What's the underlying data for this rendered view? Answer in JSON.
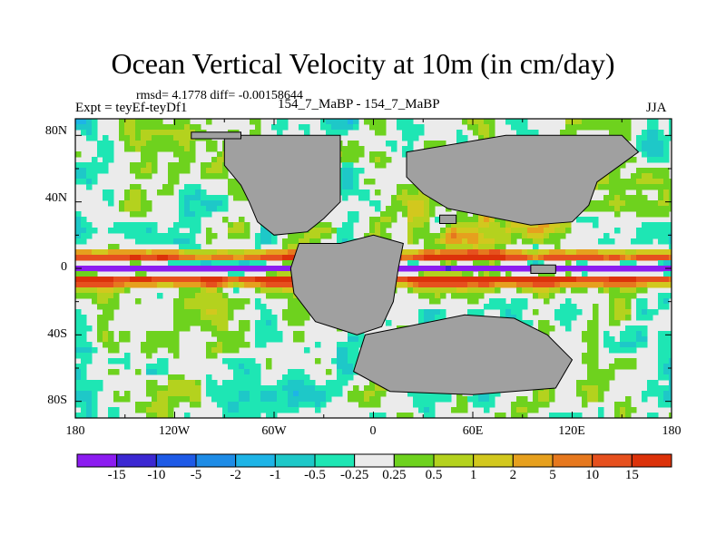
{
  "title": "Ocean Vertical Velocity at 10m (in cm/day)",
  "stats": "rmsd= 4.1778  diff= -0.00158644",
  "expt": "Expt = teyEf-teyDf1",
  "center_label": "154_7_MaBP - 154_7_MaBP",
  "season": "JJA",
  "lat_labels": [
    "80N",
    "40N",
    "0",
    "40S",
    "80S"
  ],
  "lon_labels": [
    "180",
    "120W",
    "60W",
    "0",
    "60E",
    "120E",
    "180"
  ],
  "colorbar": {
    "labels": [
      "-15",
      "-10",
      "-5",
      "-2",
      "-1",
      "-0.5",
      "-0.25",
      "0.25",
      "0.5",
      "1",
      "2",
      "5",
      "10",
      "15"
    ],
    "colors": [
      "#8c1cf0",
      "#3c28d2",
      "#1e5ae6",
      "#1e8ce6",
      "#1eb4e6",
      "#1ec8c8",
      "#1ee6b4",
      "#ebebeb",
      "#6ed21e",
      "#b4d21e",
      "#d2c81e",
      "#e6a01e",
      "#e6781e",
      "#e6501e",
      "#dc320a"
    ]
  },
  "land_color": "#a0a0a0",
  "ocean_base_color": "#ebebeb"
}
